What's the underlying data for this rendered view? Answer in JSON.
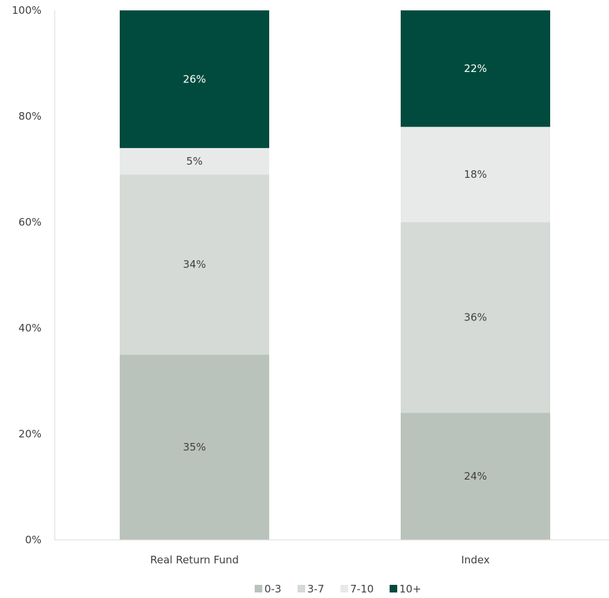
{
  "chart_data": {
    "type": "bar",
    "stacked": true,
    "categories": [
      "Real Return Fund",
      "Index"
    ],
    "series": [
      {
        "name": "0-3",
        "values": [
          35,
          24
        ],
        "labels": [
          "35%",
          "24%"
        ],
        "color": "#bac3bb",
        "label_color": "#404040"
      },
      {
        "name": "3-7",
        "values": [
          34,
          36
        ],
        "labels": [
          "34%",
          "36%"
        ],
        "color": "#d5dad6",
        "label_color": "#404040"
      },
      {
        "name": "7-10",
        "values": [
          5,
          18
        ],
        "labels": [
          "5%",
          "18%"
        ],
        "color": "#e8eae9",
        "label_color": "#404040"
      },
      {
        "name": "10+",
        "values": [
          26,
          22
        ],
        "labels": [
          "26%",
          "22%"
        ],
        "color": "#004b3d",
        "label_color": "#ffffff"
      }
    ],
    "y_ticks": [
      {
        "value": 0,
        "label": "0%"
      },
      {
        "value": 20,
        "label": "20%"
      },
      {
        "value": 40,
        "label": "40%"
      },
      {
        "value": 60,
        "label": "60%"
      },
      {
        "value": 80,
        "label": "80%"
      },
      {
        "value": 100,
        "label": "100%"
      }
    ],
    "ylim": [
      0,
      100
    ],
    "grid": false,
    "legend_position": "bottom"
  }
}
